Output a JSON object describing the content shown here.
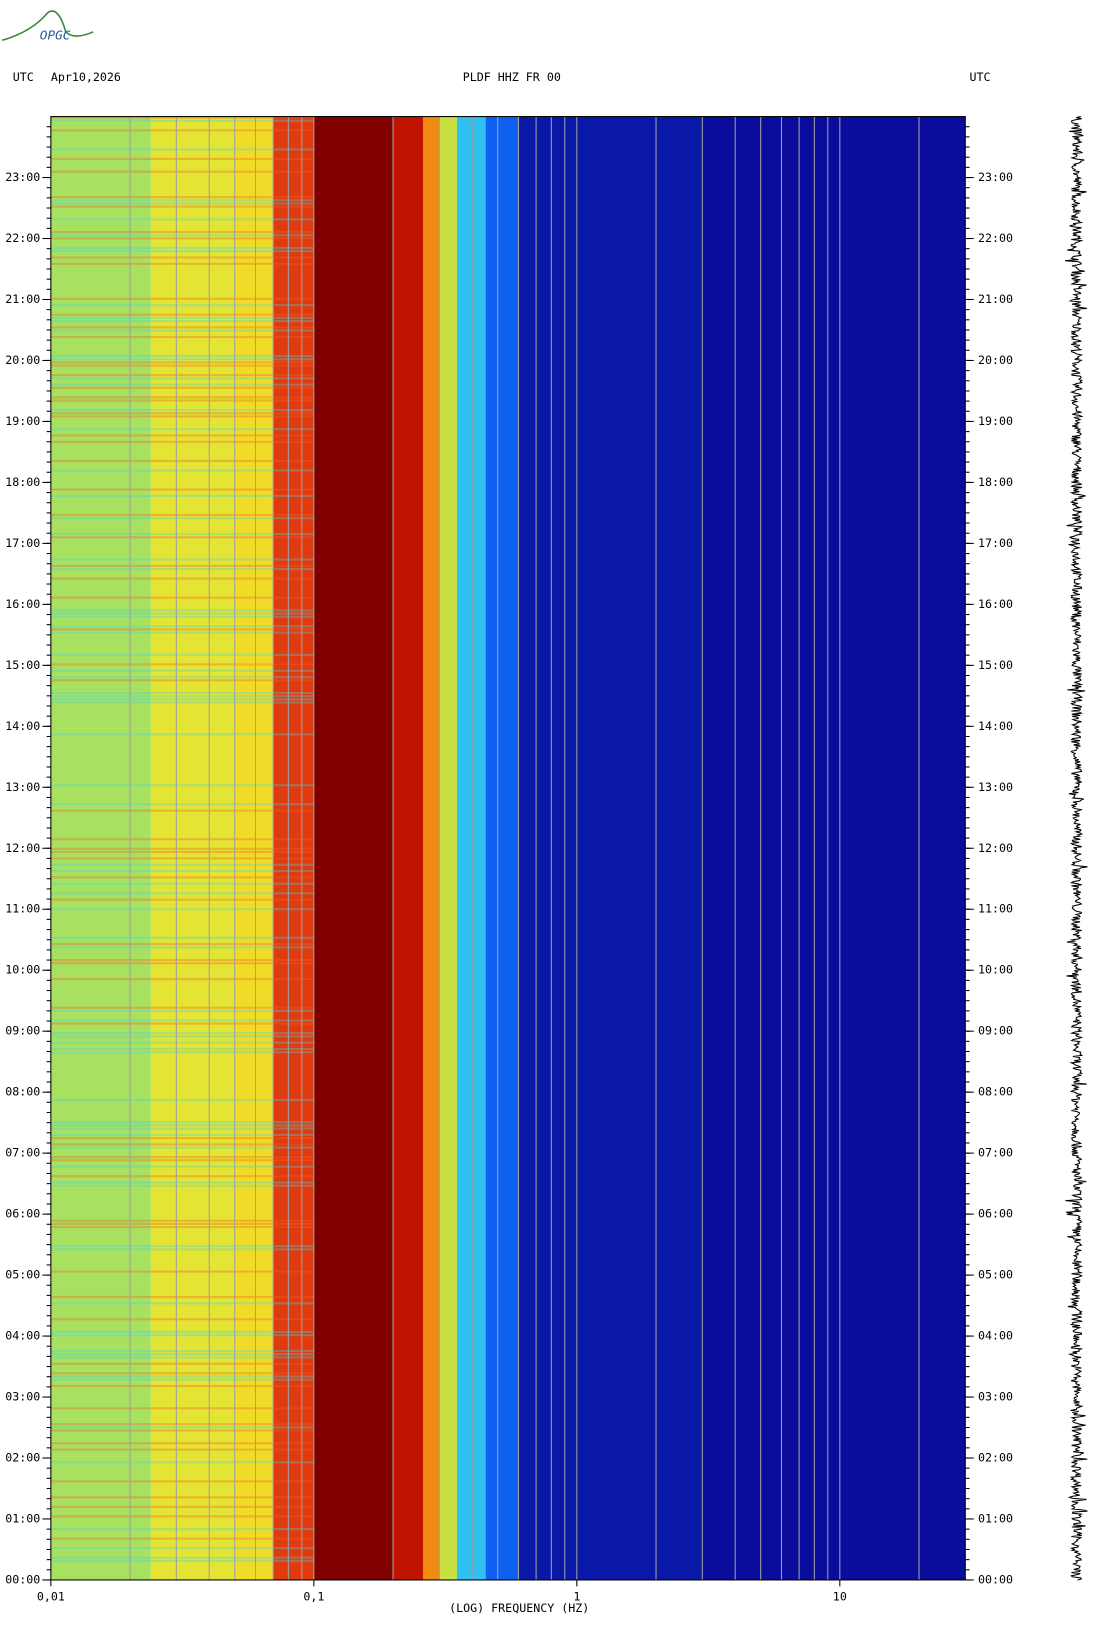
{
  "chart_data": {
    "type": "spectrogram",
    "logo": "OPGC",
    "title": "PLDF HHZ FR 00",
    "left_label": "UTC",
    "date": "Apr10,2026",
    "right_label": "UTC",
    "xlabel": "(LOG) FREQUENCY (HZ)",
    "xscale": "log",
    "xlim": [
      0.01,
      30
    ],
    "xticks": [
      {
        "value": 0.01,
        "label": "0,01"
      },
      {
        "value": 0.1,
        "label": "0,1"
      },
      1,
      10
    ],
    "ylim": [
      0,
      24
    ],
    "yticks": [
      {
        "value": 0,
        "label": "00:00"
      },
      {
        "value": 1,
        "label": "01:00"
      },
      {
        "value": 2,
        "label": "02:00"
      },
      {
        "value": 3,
        "label": "03:00"
      },
      {
        "value": 4,
        "label": "04:00"
      },
      {
        "value": 5,
        "label": "05:00"
      },
      {
        "value": 6,
        "label": "06:00"
      },
      {
        "value": 7,
        "label": "07:00"
      },
      {
        "value": 8,
        "label": "08:00"
      },
      {
        "value": 9,
        "label": "09:00"
      },
      {
        "value": 10,
        "label": "10:00"
      },
      {
        "value": 11,
        "label": "11:00"
      },
      {
        "value": 12,
        "label": "12:00"
      },
      {
        "value": 13,
        "label": "13:00"
      },
      {
        "value": 14,
        "label": "14:00"
      },
      {
        "value": 15,
        "label": "15:00"
      },
      {
        "value": 16,
        "label": "16:00"
      },
      {
        "value": 17,
        "label": "17:00"
      },
      {
        "value": 18,
        "label": "18:00"
      },
      {
        "value": 19,
        "label": "19:00"
      },
      {
        "value": 20,
        "label": "20:00"
      },
      {
        "value": 21,
        "label": "21:00"
      },
      {
        "value": 22,
        "label": "22:00"
      },
      {
        "value": 23,
        "label": "23:00"
      }
    ],
    "grid": true,
    "band_edges": [
      0.01,
      0.024,
      0.05,
      0.07,
      0.1,
      0.2,
      0.26,
      0.3,
      0.35,
      0.45,
      0.6,
      3,
      30
    ],
    "band_colors": [
      "#a8e060",
      "#e4e434",
      "#f0dc28",
      "#e03a10",
      "#800000",
      "#c01400",
      "#f08a10",
      "#c8e040",
      "#30c0f0",
      "#1060f0",
      "#0a18a8",
      "#0a0c9c"
    ]
  }
}
